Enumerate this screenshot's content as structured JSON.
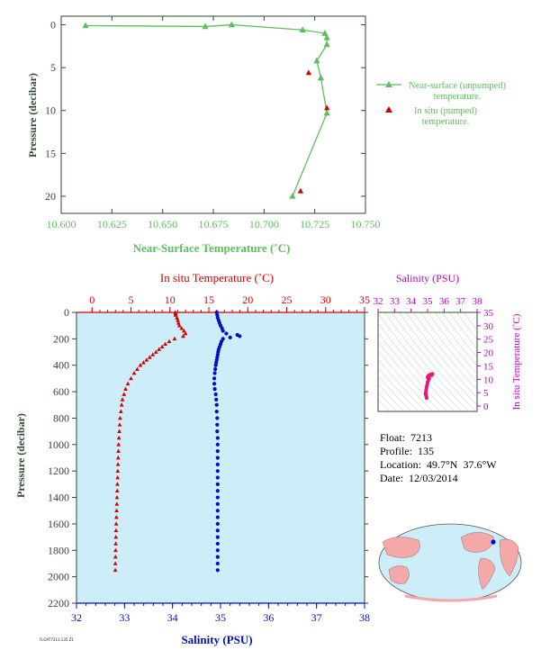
{
  "colors": {
    "green": "#5cbf5c",
    "red": "#d40000",
    "blue": "#0010c0",
    "magenta": "#c000c0",
    "pink": "#e8187a",
    "axis_dark": "#2e4a2e",
    "panel_bg": "#cdeef8",
    "land": "#f4a8a8",
    "ocean": "#cdeef8"
  },
  "info": {
    "float": "Float:  7213",
    "profile": "Profile:  135",
    "location": "Location:  49.7°N  37.6°W",
    "date": "Date:  12/03/2014"
  },
  "credit": "FLOAT7213.135.Z1",
  "chart_data": [
    {
      "type": "line",
      "name": "near-surface",
      "xlabel": "Near-Surface Temperature (˚C)",
      "ylabel": "Pressure (decibar)",
      "xlim": [
        10.6,
        10.75
      ],
      "ylim": [
        22,
        -1
      ],
      "xticks": [
        "10.600",
        "10.625",
        "10.650",
        "10.675",
        "10.700",
        "10.725",
        "10.750"
      ],
      "yticks": [
        "0",
        "5",
        "10",
        "15",
        "20"
      ],
      "legend": {
        "placement": "right",
        "entries": [
          [
            "Near-surface (unpumped)",
            "temperature."
          ],
          [
            "In situ (pumped)",
            "temperature."
          ]
        ]
      },
      "series": [
        {
          "marker": "triangle",
          "color": "green",
          "points": [
            [
              10.612,
              0.1
            ],
            [
              10.671,
              0.2
            ],
            [
              10.684,
              0.0
            ],
            [
              10.719,
              0.6
            ],
            [
              10.73,
              1.0
            ],
            [
              10.731,
              1.5
            ],
            [
              10.731,
              2.3
            ],
            [
              10.726,
              4.2
            ],
            [
              10.728,
              6.2
            ],
            [
              10.731,
              10.3
            ],
            [
              10.714,
              20.0
            ]
          ]
        },
        {
          "marker": "triangle",
          "color": "red",
          "points": [
            [
              10.722,
              5.6
            ],
            [
              10.731,
              9.7
            ],
            [
              10.718,
              19.4
            ]
          ]
        }
      ]
    },
    {
      "type": "scatter",
      "name": "profile",
      "ylabel": "Pressure (decibar)",
      "ylim": [
        2200,
        0
      ],
      "yticks": [
        "0",
        "200",
        "400",
        "600",
        "800",
        "1000",
        "1200",
        "1400",
        "1600",
        "1800",
        "2000",
        "2200"
      ],
      "top_axis": {
        "label": "In situ Temperature (˚C)",
        "range": [
          -2,
          35
        ],
        "ticks": [
          "0",
          "5",
          "10",
          "15",
          "20",
          "25",
          "30",
          "35"
        ]
      },
      "bottom_axis": {
        "label": "Salinity (PSU)",
        "range": [
          32,
          38
        ],
        "ticks": [
          "32",
          "33",
          "34",
          "35",
          "36",
          "37",
          "38"
        ]
      },
      "temperature": [
        [
          10.7,
          0
        ],
        [
          10.72,
          10
        ],
        [
          10.73,
          20
        ],
        [
          10.9,
          40
        ],
        [
          11.0,
          60
        ],
        [
          11.1,
          80
        ],
        [
          11.2,
          100
        ],
        [
          11.5,
          120
        ],
        [
          11.8,
          140
        ],
        [
          12.0,
          160
        ],
        [
          11.7,
          180
        ],
        [
          10.6,
          200
        ],
        [
          9.9,
          220
        ],
        [
          9.4,
          240
        ],
        [
          9.0,
          260
        ],
        [
          8.6,
          280
        ],
        [
          8.2,
          300
        ],
        [
          7.8,
          320
        ],
        [
          7.4,
          340
        ],
        [
          7.0,
          360
        ],
        [
          6.6,
          380
        ],
        [
          6.2,
          400
        ],
        [
          5.8,
          430
        ],
        [
          5.4,
          460
        ],
        [
          5.0,
          500
        ],
        [
          4.6,
          540
        ],
        [
          4.3,
          580
        ],
        [
          4.1,
          620
        ],
        [
          3.9,
          660
        ],
        [
          3.8,
          700
        ],
        [
          3.7,
          750
        ],
        [
          3.6,
          800
        ],
        [
          3.55,
          850
        ],
        [
          3.5,
          900
        ],
        [
          3.45,
          950
        ],
        [
          3.4,
          1000
        ],
        [
          3.38,
          1050
        ],
        [
          3.35,
          1100
        ],
        [
          3.33,
          1150
        ],
        [
          3.3,
          1200
        ],
        [
          3.28,
          1250
        ],
        [
          3.25,
          1300
        ],
        [
          3.23,
          1350
        ],
        [
          3.2,
          1400
        ],
        [
          3.18,
          1450
        ],
        [
          3.15,
          1500
        ],
        [
          3.13,
          1550
        ],
        [
          3.1,
          1600
        ],
        [
          3.08,
          1650
        ],
        [
          3.06,
          1700
        ],
        [
          3.04,
          1750
        ],
        [
          3.02,
          1800
        ],
        [
          3.0,
          1850
        ],
        [
          2.99,
          1900
        ],
        [
          2.98,
          1950
        ]
      ],
      "salinity": [
        [
          34.92,
          0
        ],
        [
          34.93,
          20
        ],
        [
          34.94,
          40
        ],
        [
          34.96,
          60
        ],
        [
          34.98,
          80
        ],
        [
          35.0,
          100
        ],
        [
          35.03,
          120
        ],
        [
          35.05,
          140
        ],
        [
          35.12,
          160
        ],
        [
          35.35,
          170
        ],
        [
          35.4,
          180
        ],
        [
          35.2,
          190
        ],
        [
          35.05,
          200
        ],
        [
          35.02,
          220
        ],
        [
          35.0,
          240
        ],
        [
          34.98,
          260
        ],
        [
          34.96,
          280
        ],
        [
          34.95,
          300
        ],
        [
          34.94,
          320
        ],
        [
          34.93,
          340
        ],
        [
          34.92,
          360
        ],
        [
          34.91,
          380
        ],
        [
          34.9,
          400
        ],
        [
          34.89,
          430
        ],
        [
          34.88,
          460
        ],
        [
          34.87,
          500
        ],
        [
          34.87,
          540
        ],
        [
          34.88,
          580
        ],
        [
          34.9,
          620
        ],
        [
          34.91,
          660
        ],
        [
          34.92,
          700
        ],
        [
          34.92,
          750
        ],
        [
          34.93,
          800
        ],
        [
          34.93,
          850
        ],
        [
          34.93,
          900
        ],
        [
          34.94,
          950
        ],
        [
          34.94,
          1000
        ],
        [
          34.94,
          1050
        ],
        [
          34.94,
          1100
        ],
        [
          34.94,
          1150
        ],
        [
          34.94,
          1200
        ],
        [
          34.94,
          1250
        ],
        [
          34.94,
          1300
        ],
        [
          34.94,
          1350
        ],
        [
          34.94,
          1400
        ],
        [
          34.94,
          1450
        ],
        [
          34.94,
          1500
        ],
        [
          34.94,
          1550
        ],
        [
          34.94,
          1600
        ],
        [
          34.94,
          1650
        ],
        [
          34.94,
          1700
        ],
        [
          34.94,
          1750
        ],
        [
          34.94,
          1800
        ],
        [
          34.94,
          1850
        ],
        [
          34.94,
          1900
        ],
        [
          34.94,
          1950
        ]
      ]
    },
    {
      "type": "scatter",
      "name": "ts-diagram",
      "top_label": "Salinity (PSU)",
      "right_label": "In situ Temperature (˚C)",
      "xlim": [
        32,
        38
      ],
      "ylim": [
        -2,
        35
      ],
      "xticks": [
        "32",
        "33",
        "34",
        "35",
        "36",
        "37",
        "38"
      ],
      "yticks": [
        "0",
        "5",
        "10",
        "15",
        "20",
        "25",
        "30",
        "35"
      ],
      "points": [
        [
          35.0,
          10.7
        ],
        [
          35.02,
          11.0
        ],
        [
          35.05,
          11.3
        ],
        [
          35.1,
          11.6
        ],
        [
          35.2,
          11.9
        ],
        [
          35.3,
          12.0
        ],
        [
          35.25,
          11.5
        ],
        [
          35.1,
          10.4
        ],
        [
          35.05,
          9.6
        ],
        [
          35.0,
          8.9
        ],
        [
          34.98,
          8.2
        ],
        [
          34.96,
          7.5
        ],
        [
          34.94,
          6.9
        ],
        [
          34.92,
          6.2
        ],
        [
          34.9,
          5.6
        ],
        [
          34.89,
          5.0
        ],
        [
          34.88,
          4.5
        ],
        [
          34.9,
          4.0
        ],
        [
          34.92,
          3.7
        ],
        [
          34.93,
          3.5
        ],
        [
          34.94,
          3.2
        ],
        [
          34.94,
          3.0
        ]
      ]
    }
  ]
}
